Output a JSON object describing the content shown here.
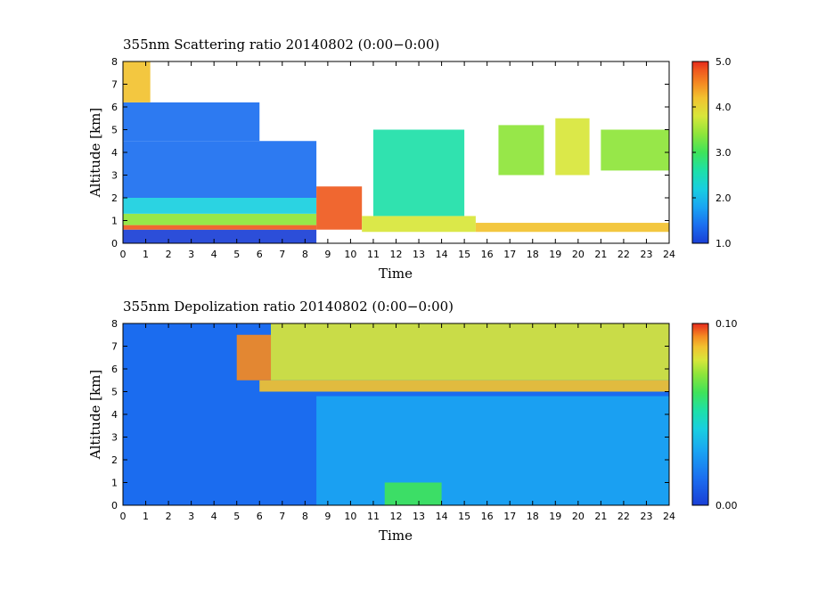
{
  "colors": {
    "scale": [
      "#1a3fd6",
      "#1b6ff0",
      "#1aa5f2",
      "#19cfe0",
      "#1ee0a8",
      "#3fe35a",
      "#8ee53a",
      "#d8e63a",
      "#f2c230",
      "#f48a22",
      "#ef5a1e",
      "#e62a1c"
    ]
  },
  "chart_data": [
    {
      "type": "heatmap",
      "title": "355nm Scattering ratio  20140802 (0:00−0:00)",
      "xlabel": "Time",
      "ylabel": "Altitude [km]",
      "xlim": [
        0,
        24
      ],
      "ylim": [
        0,
        8
      ],
      "x_ticks": [
        "0",
        "1",
        "2",
        "3",
        "4",
        "5",
        "6",
        "7",
        "8",
        "9",
        "10",
        "11",
        "12",
        "13",
        "14",
        "15",
        "16",
        "17",
        "18",
        "19",
        "20",
        "21",
        "22",
        "23",
        "24"
      ],
      "y_ticks": [
        "0",
        "1",
        "2",
        "3",
        "4",
        "5",
        "6",
        "7",
        "8"
      ],
      "colorbar": {
        "min": 1.0,
        "max": 5.0,
        "ticks": [
          "1.0",
          "2.0",
          "3.0",
          "4.0",
          "5.0"
        ]
      },
      "regions": [
        {
          "x": [
            0,
            8.5
          ],
          "y": [
            0,
            0.6
          ],
          "value": 1.0
        },
        {
          "x": [
            0,
            8.5
          ],
          "y": [
            0.6,
            0.8
          ],
          "value": 4.8
        },
        {
          "x": [
            0,
            8.5
          ],
          "y": [
            0.8,
            1.3
          ],
          "value": 3.2
        },
        {
          "x": [
            0,
            8.5
          ],
          "y": [
            1.3,
            2.0
          ],
          "value": 2.2
        },
        {
          "x": [
            0,
            8.5
          ],
          "y": [
            2.0,
            4.5
          ],
          "value": 1.5
        },
        {
          "x": [
            0,
            6.0
          ],
          "y": [
            4.5,
            6.2
          ],
          "value": 1.3
        },
        {
          "x": [
            0,
            1.2
          ],
          "y": [
            6.2,
            8.0
          ],
          "value": 4.0
        },
        {
          "x": [
            8.5,
            10.5
          ],
          "y": [
            0.6,
            2.5
          ],
          "value": 4.5
        },
        {
          "x": [
            10.5,
            15.5
          ],
          "y": [
            0.5,
            1.2
          ],
          "value": 3.5
        },
        {
          "x": [
            11.0,
            15.0
          ],
          "y": [
            1.2,
            5.0
          ],
          "value": 2.6
        },
        {
          "x": [
            15.5,
            24.0
          ],
          "y": [
            0.5,
            0.9
          ],
          "value": 4.0
        },
        {
          "x": [
            16.5,
            18.5
          ],
          "y": [
            3.0,
            5.2
          ],
          "value": 3.0
        },
        {
          "x": [
            19.0,
            20.5
          ],
          "y": [
            3.0,
            5.5
          ],
          "value": 3.6
        },
        {
          "x": [
            21.0,
            24.0
          ],
          "y": [
            3.2,
            5.0
          ],
          "value": 3.0
        }
      ]
    },
    {
      "type": "heatmap",
      "title": "355nm Depolization ratio  20140802 (0:00−0:00)",
      "xlabel": "Time",
      "ylabel": "Altitude [km]",
      "xlim": [
        0,
        24
      ],
      "ylim": [
        0,
        8
      ],
      "x_ticks": [
        "0",
        "1",
        "2",
        "3",
        "4",
        "5",
        "6",
        "7",
        "8",
        "9",
        "10",
        "11",
        "12",
        "13",
        "14",
        "15",
        "16",
        "17",
        "18",
        "19",
        "20",
        "21",
        "22",
        "23",
        "24"
      ],
      "y_ticks": [
        "0",
        "1",
        "2",
        "3",
        "4",
        "5",
        "6",
        "7",
        "8"
      ],
      "colorbar": {
        "min": 0.0,
        "max": 0.1,
        "ticks": [
          "0.00",
          "0.10"
        ]
      },
      "regions": [
        {
          "x": [
            0,
            24
          ],
          "y": [
            0,
            8
          ],
          "value": 0.005
        },
        {
          "x": [
            8.5,
            24
          ],
          "y": [
            0,
            4.8
          ],
          "value": 0.02
        },
        {
          "x": [
            11.5,
            14.0
          ],
          "y": [
            0,
            1.0
          ],
          "value": 0.045
        },
        {
          "x": [
            6.0,
            24
          ],
          "y": [
            5.0,
            5.5
          ],
          "value": 0.07
        },
        {
          "x": [
            6.5,
            24
          ],
          "y": [
            5.5,
            8.0
          ],
          "value": 0.06
        },
        {
          "x": [
            5.0,
            6.5
          ],
          "y": [
            5.5,
            7.5
          ],
          "value": 0.08
        }
      ]
    }
  ]
}
